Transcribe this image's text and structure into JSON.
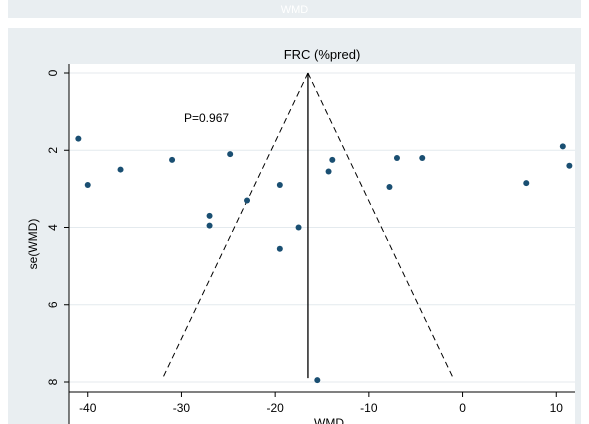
{
  "top_strip": {
    "label": "WMD"
  },
  "chart_data": {
    "type": "scatter",
    "subtype": "funnel-plot",
    "title": "FRC (%pred)",
    "xlabel": "WMD",
    "ylabel": "se(WMD)",
    "xlim": [
      -42,
      12
    ],
    "ylim": [
      0,
      8
    ],
    "y_inverted": true,
    "x_ticks": [
      -40,
      -30,
      -20,
      -10,
      0,
      10
    ],
    "y_ticks": [
      0,
      2,
      4,
      6,
      8
    ],
    "grid": "horizontal",
    "legend": "none",
    "annotation": "P=0.967",
    "pooled_estimate": -16.5,
    "funnel_base_se": 7.9,
    "funnel_limits_at_base": [
      -32.0,
      -1.0
    ],
    "points": [
      {
        "x": -41.0,
        "y": 1.7
      },
      {
        "x": -40.0,
        "y": 2.9
      },
      {
        "x": -36.5,
        "y": 2.5
      },
      {
        "x": -31.0,
        "y": 2.25
      },
      {
        "x": -27.0,
        "y": 3.7
      },
      {
        "x": -27.0,
        "y": 3.95
      },
      {
        "x": -24.8,
        "y": 2.1
      },
      {
        "x": -23.0,
        "y": 3.3
      },
      {
        "x": -19.5,
        "y": 2.9
      },
      {
        "x": -19.5,
        "y": 4.55
      },
      {
        "x": -17.5,
        "y": 4.0
      },
      {
        "x": -15.5,
        "y": 7.95
      },
      {
        "x": -14.3,
        "y": 2.55
      },
      {
        "x": -13.9,
        "y": 2.25
      },
      {
        "x": -7.8,
        "y": 2.95
      },
      {
        "x": -7.0,
        "y": 2.2
      },
      {
        "x": -4.3,
        "y": 2.2
      },
      {
        "x": 6.8,
        "y": 2.85
      },
      {
        "x": 10.7,
        "y": 1.9
      },
      {
        "x": 11.4,
        "y": 2.4
      }
    ]
  },
  "colors": {
    "panel_bg": "#e9eef1",
    "plot_bg": "#ffffff",
    "grid": "#e4eaee",
    "marker": "#1a4f72",
    "lines": "#000000"
  }
}
